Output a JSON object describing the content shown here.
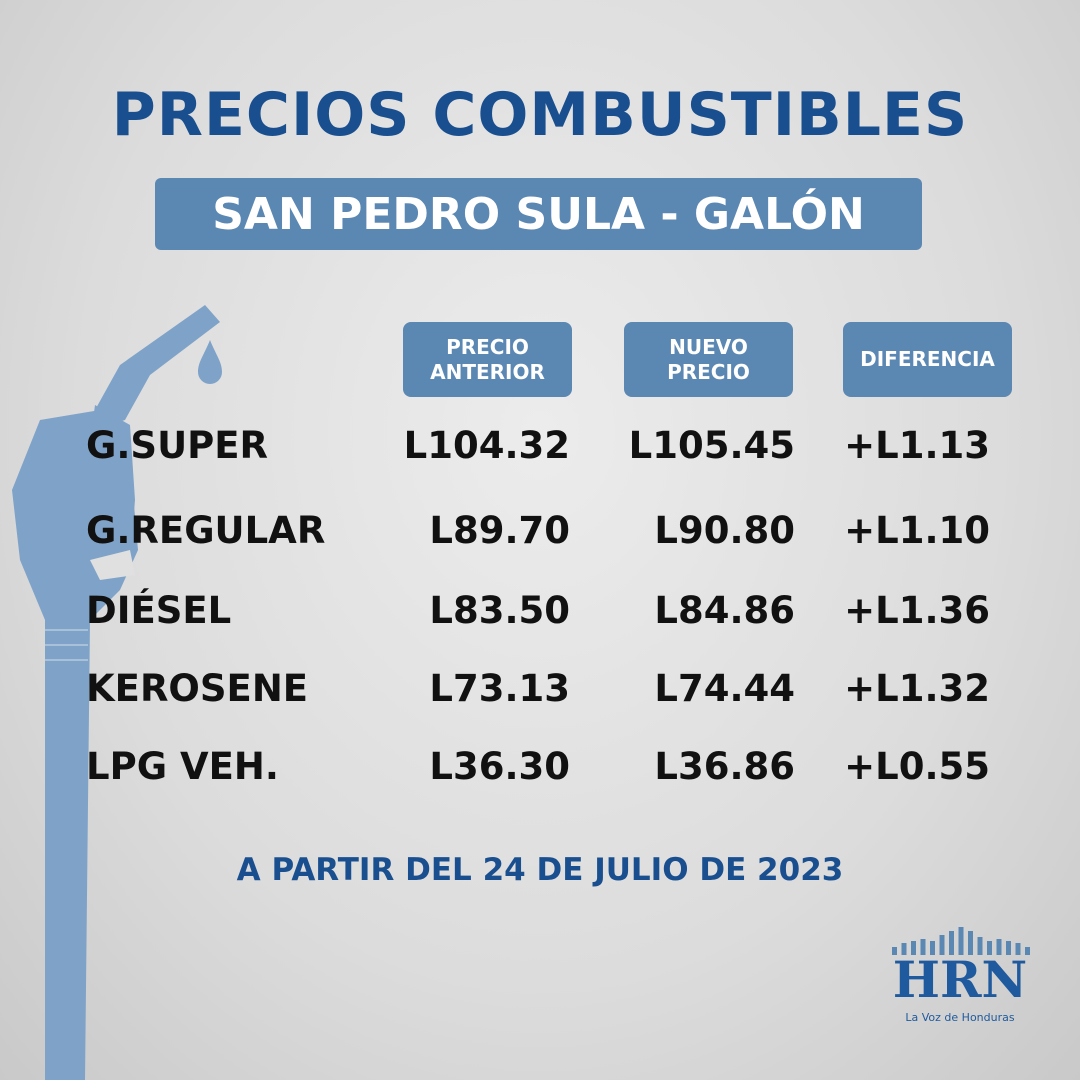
{
  "title": "PRECIOS COMBUSTIBLES",
  "subtitle": "SAN PEDRO SULA - GALÓN",
  "headers": [
    "PRECIO\nANTERIOR",
    "NUEVO\nPRECIO",
    "DIFERENCIA"
  ],
  "rows": [
    {
      "fuel": "G.SUPER",
      "previous": "L104.32",
      "new": "L105.45",
      "difference": "+L1.13"
    },
    {
      "fuel": "G.REGULAR",
      "previous": "L89.70",
      "new": "L90.80",
      "difference": "+L1.10"
    },
    {
      "fuel": "DIÉSEL",
      "previous": "L83.50",
      "new": "L84.86",
      "difference": "+L1.36"
    },
    {
      "fuel": "KEROSENE",
      "previous": "L73.13",
      "new": "L74.44",
      "difference": "+L1.32"
    },
    {
      "fuel": "LPG VEH.",
      "previous": "L36.30",
      "new": "L36.86",
      "difference": "+L0.55"
    }
  ],
  "footer": "A PARTIR DEL 24 DE JULIO DE 2023",
  "logo": {
    "name": "HRN",
    "tagline": "La Voz de Honduras"
  },
  "icons": {
    "decoration": "fuel-nozzle-icon"
  },
  "colors": {
    "title": "#1a4f8f",
    "box": "#5b87b3",
    "nozzle": "#7fa3c8",
    "text": "#111111"
  }
}
